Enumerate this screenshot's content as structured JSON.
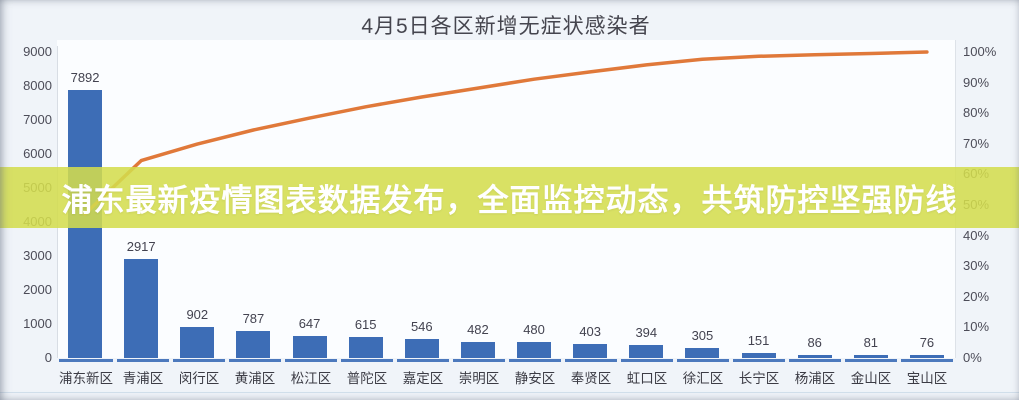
{
  "banner": {
    "text": "浦东最新疫情图表数据发布，全面监控动态，共筑防控坚强防线",
    "bg_color": "#d3dc4d",
    "bg_opacity": 0.87,
    "text_color": "#ffffff"
  },
  "chart_data": {
    "type": "bar",
    "subtype": "pareto",
    "title": "4月5日各区新增无症状感染者",
    "categories": [
      "浦东新区",
      "青浦区",
      "闵行区",
      "黄浦区",
      "松江区",
      "普陀区",
      "嘉定区",
      "崇明区",
      "静安区",
      "奉贤区",
      "虹口区",
      "徐汇区",
      "长宁区",
      "杨浦区",
      "金山区",
      "宝山区"
    ],
    "values": [
      7892,
      2917,
      902,
      787,
      647,
      615,
      546,
      482,
      480,
      403,
      394,
      305,
      151,
      86,
      81,
      76
    ],
    "value_labels": [
      "7892",
      "2917",
      "902",
      "787",
      "647",
      "615",
      "546",
      "482",
      "480",
      "403",
      "394",
      "305",
      "151",
      "86",
      "81",
      "76"
    ],
    "cumulative_line_pct": [
      47.1,
      64.5,
      69.9,
      74.5,
      78.4,
      82.1,
      85.3,
      88.2,
      91.1,
      93.5,
      95.8,
      97.6,
      98.6,
      99.1,
      99.5,
      100
    ],
    "bar_color": "#3d6db6",
    "line_color": "#e0793a",
    "y_axis_left": {
      "min": 0,
      "max": 9000,
      "step": 1000,
      "tick_labels": [
        "9000",
        "8000",
        "7000",
        "6000",
        "5000",
        "4000",
        "3000",
        "2000",
        "1000",
        "0"
      ]
    },
    "y_axis_right": {
      "min_label": "0%",
      "max_label": "100%",
      "tick_labels": [
        "100%",
        "90%",
        "80%",
        "70%",
        "60%",
        "50%",
        "40%",
        "30%",
        "20%",
        "10%",
        "0%"
      ]
    },
    "legend": "none",
    "grid": "none"
  }
}
